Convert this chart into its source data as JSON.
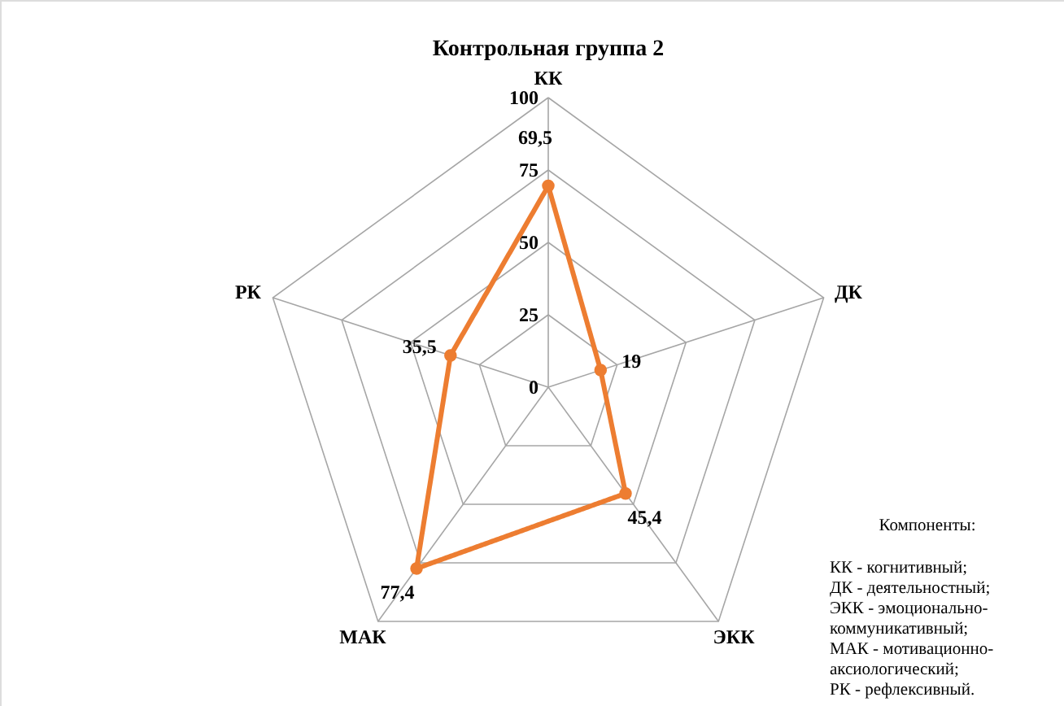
{
  "chart_data": {
    "type": "radar",
    "title": "Контрольная группа 2",
    "categories": [
      "КК",
      "ДК",
      "ЭКК",
      "МАК",
      "РК"
    ],
    "series": [
      {
        "color": "#ed7d31",
        "values": [
          69.5,
          19,
          45.4,
          77.4,
          35.5
        ]
      }
    ],
    "value_labels": [
      "69,5",
      "19",
      "45,4",
      "77,4",
      "35,5"
    ],
    "ylim": [
      0,
      100
    ],
    "yticks": [
      0,
      25,
      50,
      75,
      100
    ],
    "grid": true,
    "marker": "circle",
    "line_style": "solid",
    "annotations": [
      "Компоненты:",
      "КК - когнитивный;",
      "ДК - деятельностный;",
      "ЭКК - эмоционально-коммуникативный;",
      "МАК - мотивационно-аксиологический;",
      "РК - рефлексивный."
    ]
  }
}
